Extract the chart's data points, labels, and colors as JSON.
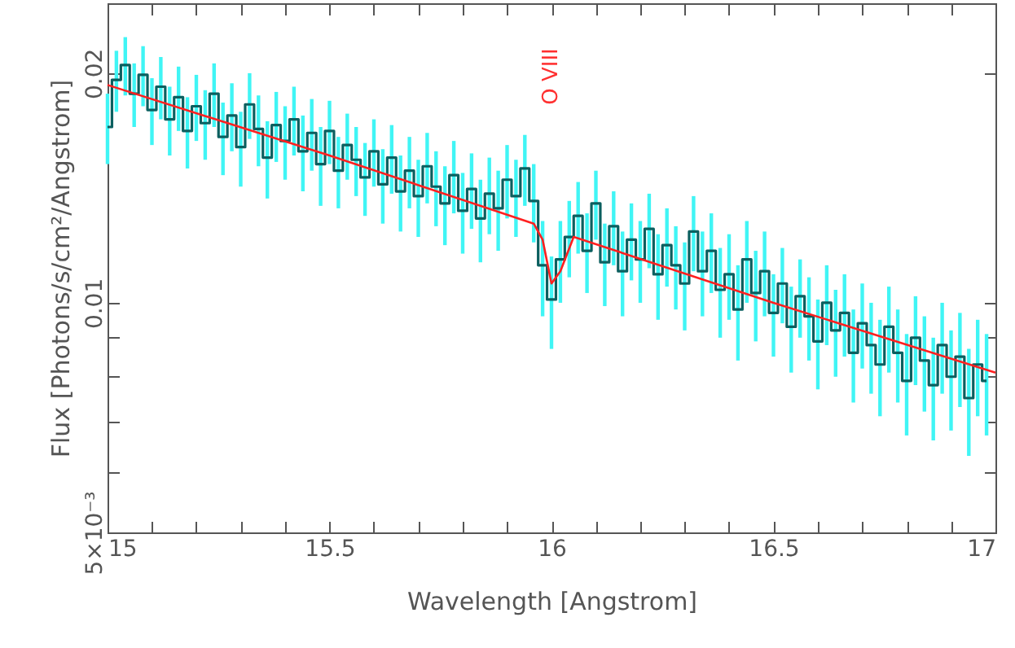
{
  "chart_data": {
    "type": "step",
    "xlabel": "Wavelength [Angstrom]",
    "ylabel": "Flux [Photons/s/cm²/Angstrom]",
    "log": "y",
    "xlim": [
      15,
      17
    ],
    "ylim": [
      0.005,
      0.0247
    ],
    "xticks": [
      15,
      {
        "value": 15.1,
        "label": null
      },
      {
        "value": 15.2,
        "label": null
      },
      {
        "value": 15.3,
        "label": null
      },
      {
        "value": 15.4,
        "label": null
      },
      15.5,
      {
        "value": 15.6,
        "label": null
      },
      {
        "value": 15.7,
        "label": null
      },
      {
        "value": 15.8,
        "label": null
      },
      {
        "value": 15.9,
        "label": null
      },
      16,
      {
        "value": 16.1,
        "label": null
      },
      {
        "value": 16.2,
        "label": null
      },
      {
        "value": 16.3,
        "label": null
      },
      {
        "value": 16.4,
        "label": null
      },
      16.5,
      {
        "value": 16.6,
        "label": null
      },
      {
        "value": 16.7,
        "label": null
      },
      {
        "value": 16.8,
        "label": null
      },
      {
        "value": 16.9,
        "label": null
      },
      17
    ],
    "yticks": [
      {
        "value": 0.005,
        "label": "5×10⁻³"
      },
      {
        "value": 0.006,
        "label": null
      },
      {
        "value": 0.007,
        "label": null
      },
      {
        "value": 0.008,
        "label": null
      },
      {
        "value": 0.009,
        "label": null
      },
      0.01,
      0.02
    ],
    "annotations": [
      "O VIII"
    ],
    "series": [
      {
        "color": "#0b5f5f",
        "x": [
          15.0,
          15.02,
          15.04,
          15.06,
          15.08,
          15.1,
          15.12,
          15.14,
          15.16,
          15.18,
          15.2,
          15.22,
          15.24,
          15.26,
          15.28,
          15.3,
          15.32,
          15.34,
          15.36,
          15.38,
          15.4,
          15.42,
          15.44,
          15.46,
          15.48,
          15.5,
          15.52,
          15.54,
          15.56,
          15.58,
          15.6,
          15.62,
          15.64,
          15.66,
          15.68,
          15.7,
          15.72,
          15.74,
          15.76,
          15.78,
          15.8,
          15.82,
          15.84,
          15.86,
          15.88,
          15.9,
          15.92,
          15.94,
          15.96,
          15.98,
          16.0,
          16.02,
          16.04,
          16.06,
          16.08,
          16.1,
          16.12,
          16.14,
          16.16,
          16.18,
          16.2,
          16.22,
          16.24,
          16.26,
          16.28,
          16.3,
          16.32,
          16.34,
          16.36,
          16.38,
          16.4,
          16.42,
          16.44,
          16.46,
          16.48,
          16.5,
          16.52,
          16.54,
          16.56,
          16.58,
          16.6,
          16.62,
          16.64,
          16.66,
          16.68,
          16.7,
          16.72,
          16.74,
          16.76,
          16.78,
          16.8,
          16.82,
          16.84,
          16.86,
          16.88,
          16.9,
          16.92,
          16.94,
          16.96,
          16.98
        ],
        "values": [
          0.017,
          0.0196,
          0.0205,
          0.0188,
          0.0199,
          0.0179,
          0.0192,
          0.0174,
          0.0186,
          0.0168,
          0.0181,
          0.0172,
          0.0188,
          0.0165,
          0.0176,
          0.016,
          0.0182,
          0.0169,
          0.0155,
          0.0171,
          0.0163,
          0.0174,
          0.0158,
          0.0167,
          0.0152,
          0.0168,
          0.0149,
          0.0161,
          0.0154,
          0.0146,
          0.0158,
          0.0143,
          0.0155,
          0.014,
          0.0149,
          0.0138,
          0.0151,
          0.0142,
          0.0135,
          0.0147,
          0.0132,
          0.0141,
          0.0129,
          0.0139,
          0.0133,
          0.0145,
          0.0138,
          0.015,
          0.0136,
          0.0112,
          0.0101,
          0.0114,
          0.0122,
          0.013,
          0.0117,
          0.0135,
          0.0113,
          0.0126,
          0.011,
          0.0121,
          0.0114,
          0.0125,
          0.0109,
          0.0119,
          0.0112,
          0.0106,
          0.0124,
          0.011,
          0.0117,
          0.0104,
          0.0109,
          0.0098,
          0.0114,
          0.0103,
          0.011,
          0.0097,
          0.0106,
          0.0093,
          0.0102,
          0.0096,
          0.0089,
          0.01,
          0.0092,
          0.0097,
          0.0086,
          0.0094,
          0.0088,
          0.0083,
          0.0093,
          0.0086,
          0.0079,
          0.009,
          0.0084,
          0.0078,
          0.0088,
          0.008,
          0.0085,
          0.0075,
          0.0083,
          0.0079
        ],
        "errors": [
          0.0018,
          0.0018,
          0.0018,
          0.0018,
          0.0018,
          0.0018,
          0.0018,
          0.0018,
          0.0018,
          0.0018,
          0.0018,
          0.0018,
          0.0018,
          0.0018,
          0.0018,
          0.0018,
          0.0018,
          0.0018,
          0.0018,
          0.0018,
          0.0018,
          0.0018,
          0.0018,
          0.0018,
          0.0018,
          0.0016,
          0.0016,
          0.0016,
          0.0016,
          0.0016,
          0.0016,
          0.0016,
          0.0016,
          0.0016,
          0.0016,
          0.0016,
          0.0016,
          0.0016,
          0.0016,
          0.0016,
          0.0016,
          0.0016,
          0.0016,
          0.0016,
          0.0016,
          0.0016,
          0.0016,
          0.0016,
          0.0016,
          0.0016,
          0.0014,
          0.0014,
          0.0014,
          0.0014,
          0.0014,
          0.0014,
          0.0014,
          0.0014,
          0.0014,
          0.0014,
          0.0014,
          0.0014,
          0.0014,
          0.0014,
          0.0014,
          0.0014,
          0.0014,
          0.0014,
          0.0014,
          0.0014,
          0.0014,
          0.0014,
          0.0014,
          0.0014,
          0.0014,
          0.0012,
          0.0012,
          0.0012,
          0.0012,
          0.0012,
          0.0012,
          0.0012,
          0.0012,
          0.0012,
          0.0012,
          0.0012,
          0.0012,
          0.0012,
          0.0012,
          0.0012,
          0.0012,
          0.0012,
          0.0012,
          0.0012,
          0.0012,
          0.0012,
          0.0012,
          0.0012,
          0.0012,
          0.0012
        ]
      },
      {
        "type": "line",
        "color": "#ff2020",
        "x": [
          15,
          15.5,
          15.96,
          15.98,
          16.0,
          16.02,
          16.05,
          16.5,
          17
        ],
        "values": [
          0.0193,
          0.0156,
          0.0127,
          0.0121,
          0.0106,
          0.011,
          0.0122,
          0.01,
          0.0081
        ]
      }
    ]
  }
}
